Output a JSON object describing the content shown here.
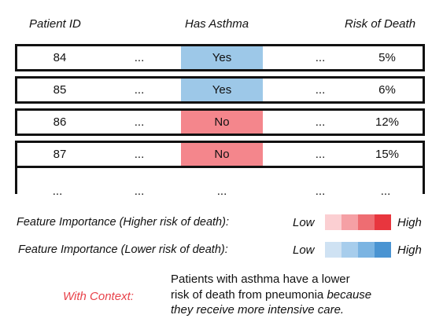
{
  "headers": {
    "patient_id": "Patient ID",
    "has_asthma": "Has Asthma",
    "risk_of_death": "Risk of Death"
  },
  "rows": [
    {
      "id": "84",
      "ellipsis1": "...",
      "asthma": "Yes",
      "ellipsis2": "...",
      "risk": "5%"
    },
    {
      "id": "85",
      "ellipsis1": "...",
      "asthma": "Yes",
      "ellipsis2": "...",
      "risk": "6%"
    },
    {
      "id": "86",
      "ellipsis1": "...",
      "asthma": "No",
      "ellipsis2": "...",
      "risk": "12%"
    },
    {
      "id": "87",
      "ellipsis1": "...",
      "asthma": "No",
      "ellipsis2": "...",
      "risk": "15%"
    }
  ],
  "trailing_row": {
    "id": "...",
    "ellipsis1": "...",
    "asthma": "...",
    "ellipsis2": "...",
    "risk": "..."
  },
  "legend": {
    "higher": {
      "label": "Feature Importance (Higher risk of death):",
      "low": "Low",
      "high": "High",
      "colors": [
        "#fbcfd2",
        "#f5a0a5",
        "#ee6d72",
        "#e8363e"
      ]
    },
    "lower": {
      "label": "Feature Importance (Lower risk of death):",
      "low": "Low",
      "high": "High",
      "colors": [
        "#cfe2f3",
        "#a7cdec",
        "#7bb4e2",
        "#4a94d2"
      ]
    }
  },
  "context": {
    "label": "With Context:",
    "line1": "Patients with asthma have a lower",
    "line2_a": "risk of death from pneumonia ",
    "line2_b": "because",
    "line3": "they receive more intensive care."
  }
}
